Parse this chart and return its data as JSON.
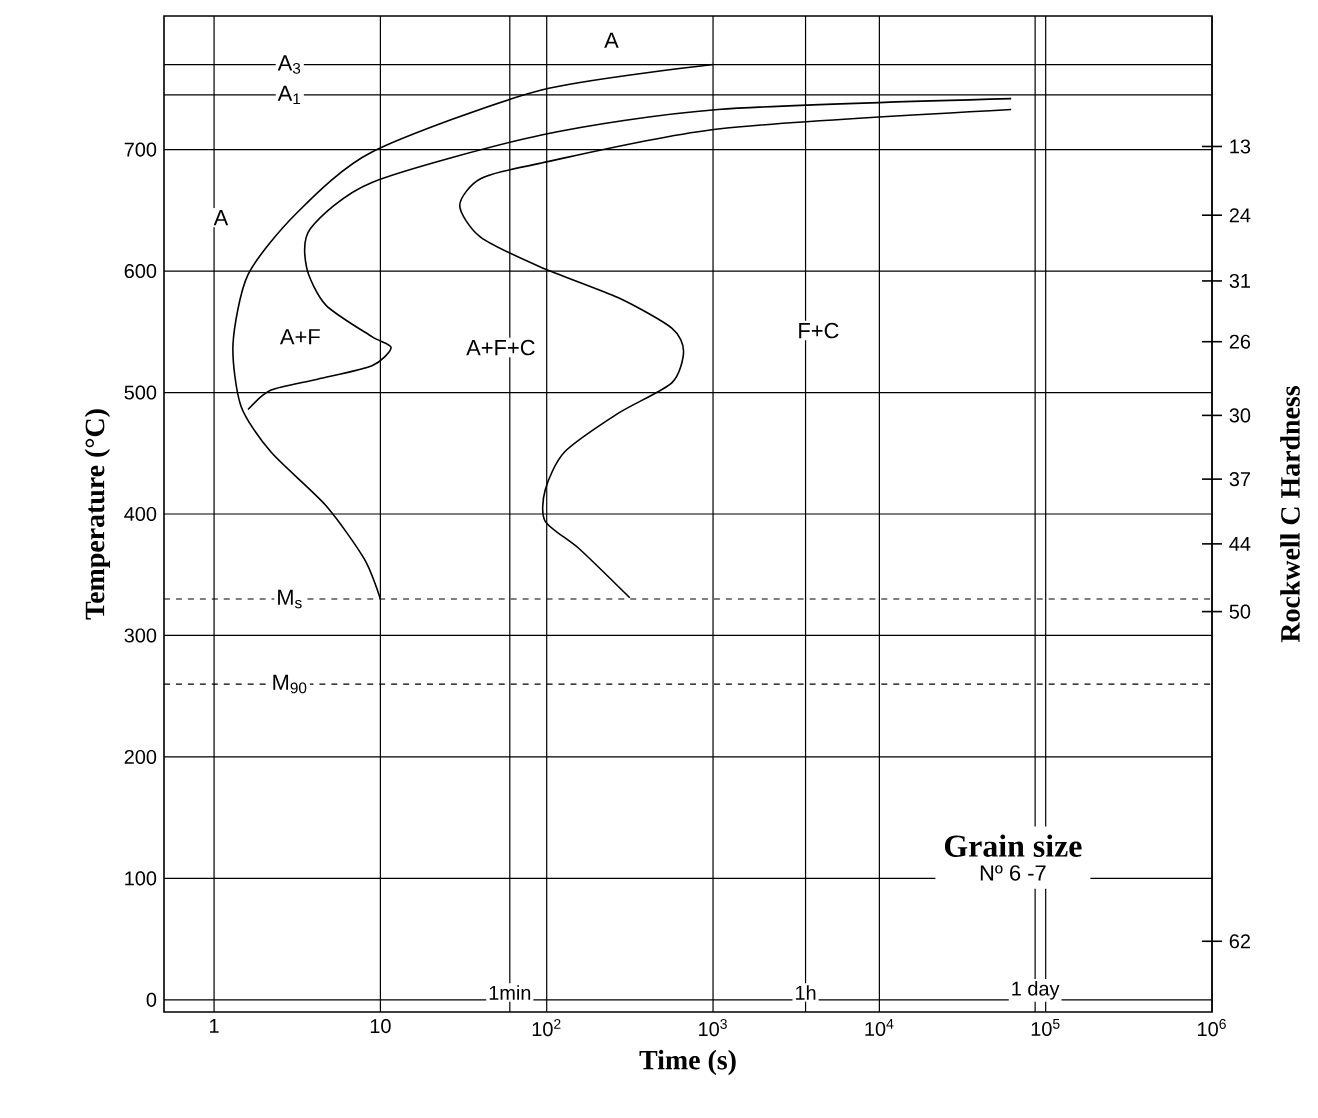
{
  "chart_data": {
    "type": "line",
    "xlabel": "Time (s)",
    "ylabel": "Temperature (°C)",
    "y2label": "Rockwell C Hardness",
    "log": "x",
    "grid": true,
    "xlim": [
      0.5,
      1000000
    ],
    "ylim": [
      -10,
      810
    ],
    "xticks": [
      1,
      10,
      {
        "value": 100,
        "label": "10$^{2}$"
      },
      {
        "value": 1000,
        "label": "10$^{3}$"
      },
      {
        "value": 10000,
        "label": "10$^{4}$"
      },
      {
        "value": 100000,
        "label": "10$^{5}$"
      },
      {
        "value": 1000000,
        "label": "10$^{6}$"
      }
    ],
    "yticks": [
      0,
      100,
      200,
      300,
      400,
      500,
      600,
      700
    ],
    "series": [
      {
        "color": "#000000",
        "x": [
          1000,
          93,
          8.9,
          3.1,
          1.6,
          1.3,
          1.45,
          2.2,
          4.7,
          8,
          10
        ],
        "values": [
          770,
          749,
          698,
          647,
          597,
          540,
          489,
          451,
          407,
          363,
          330
        ]
      },
      {
        "color": "#000000",
        "x": [
          62000,
          1070,
          93,
          8.9,
          3.8,
          3.6,
          4.7,
          8.9,
          11.6,
          8.9,
          4.2,
          2.2,
          1.6
        ],
        "values": [
          742,
          733,
          712,
          673,
          635,
          603,
          572,
          546,
          537,
          522,
          511,
          502,
          486
        ]
      },
      {
        "color": "#000000",
        "x": [
          62000,
          1070,
          93,
          40,
          30,
          40,
          93,
          270,
          565,
          665,
          565,
          270,
          128,
          98,
          98,
          158,
          316
        ],
        "values": [
          733,
          717,
          689,
          676,
          654,
          628,
          603,
          578,
          553,
          534,
          508,
          483,
          451,
          420,
          394,
          371,
          331
        ]
      }
    ],
    "ref_lines": [
      {
        "axis": "y",
        "value": 770,
        "label": "A$_{3}$",
        "line_style": "solid"
      },
      {
        "axis": "y",
        "value": 745,
        "label": "A$_{1}$",
        "line_style": "solid"
      },
      {
        "axis": "y",
        "value": 330,
        "label": "M$_{s}$",
        "line_style": "dashed"
      },
      {
        "axis": "y",
        "value": 260,
        "label": "M$_{90}$",
        "line_style": "dashed"
      },
      {
        "axis": "x",
        "value": 60,
        "label": "1min",
        "line_style": "solid"
      },
      {
        "axis": "x",
        "value": 3600,
        "label": "1h",
        "line_style": "solid"
      },
      {
        "axis": "x",
        "value": 86400,
        "label": "1 day",
        "line_style": "solid"
      }
    ],
    "annotations": [
      {
        "text": "A",
        "x": 245,
        "y": 790
      },
      {
        "text": "A",
        "x": 1.1,
        "y": 644
      },
      {
        "text": "A+F",
        "x": 3.3,
        "y": 546
      },
      {
        "text": "A+F+C",
        "x": 53,
        "y": 537
      },
      {
        "text": "F+C",
        "x": 4300,
        "y": 551
      },
      "13",
      "24",
      "31",
      "26",
      "30",
      "37",
      "44",
      "50",
      "62",
      "Grain size",
      "Nº 6 -7"
    ]
  }
}
